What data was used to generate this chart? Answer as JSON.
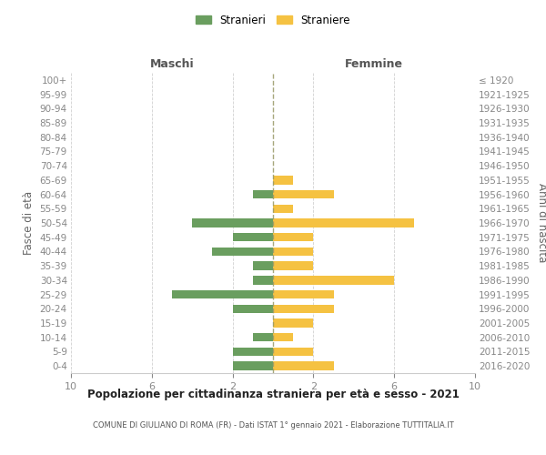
{
  "age_groups": [
    "0-4",
    "5-9",
    "10-14",
    "15-19",
    "20-24",
    "25-29",
    "30-34",
    "35-39",
    "40-44",
    "45-49",
    "50-54",
    "55-59",
    "60-64",
    "65-69",
    "70-74",
    "75-79",
    "80-84",
    "85-89",
    "90-94",
    "95-99",
    "100+"
  ],
  "birth_years": [
    "2016-2020",
    "2011-2015",
    "2006-2010",
    "2001-2005",
    "1996-2000",
    "1991-1995",
    "1986-1990",
    "1981-1985",
    "1976-1980",
    "1971-1975",
    "1966-1970",
    "1961-1965",
    "1956-1960",
    "1951-1955",
    "1946-1950",
    "1941-1945",
    "1936-1940",
    "1931-1935",
    "1926-1930",
    "1921-1925",
    "≤ 1920"
  ],
  "maschi": [
    2,
    2,
    1,
    0,
    2,
    5,
    1,
    1,
    3,
    2,
    4,
    0,
    1,
    0,
    0,
    0,
    0,
    0,
    0,
    0,
    0
  ],
  "femmine": [
    3,
    2,
    1,
    2,
    3,
    3,
    6,
    2,
    2,
    2,
    7,
    1,
    3,
    1,
    0,
    0,
    0,
    0,
    0,
    0,
    0
  ],
  "color_maschi": "#6a9e5f",
  "color_femmine": "#f5c242",
  "background_color": "#ffffff",
  "grid_color": "#cccccc",
  "title": "Popolazione per cittadinanza straniera per età e sesso - 2021",
  "subtitle": "COMUNE DI GIULIANO DI ROMA (FR) - Dati ISTAT 1° gennaio 2021 - Elaborazione TUTTITALIA.IT",
  "ylabel_left": "Fasce di età",
  "ylabel_right": "Anni di nascita",
  "title_maschi": "Maschi",
  "title_femmine": "Femmine",
  "legend_maschi": "Stranieri",
  "legend_femmine": "Straniere",
  "xlim": 10
}
